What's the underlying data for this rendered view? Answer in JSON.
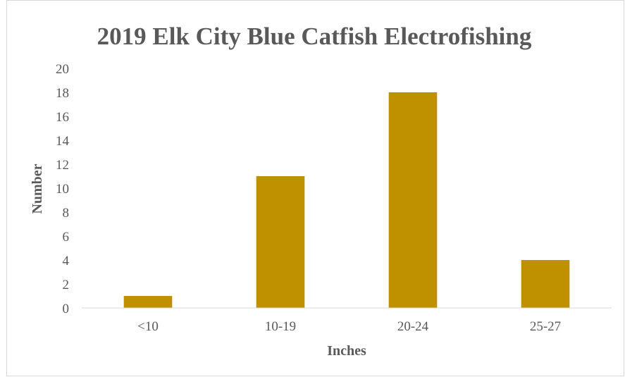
{
  "chart_data": {
    "type": "bar",
    "title": "2019 Elk City Blue Catfish Electrofishing",
    "xlabel": "Inches",
    "ylabel": "Number",
    "categories": [
      "<10",
      "10-19",
      "20-24",
      "25-27"
    ],
    "values": [
      1,
      11,
      18,
      4
    ],
    "ylim": [
      0,
      20
    ],
    "yticks": [
      "0",
      "2",
      "4",
      "6",
      "8",
      "10",
      "12",
      "14",
      "16",
      "18",
      "20"
    ],
    "grid": false,
    "legend": "none",
    "bar_color": "#bf9000"
  }
}
